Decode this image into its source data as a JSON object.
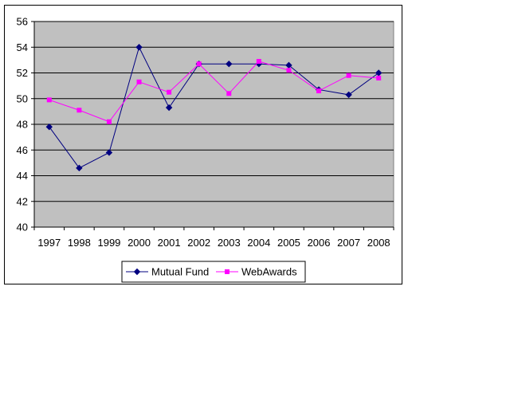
{
  "chart_data": {
    "type": "line",
    "title": "",
    "xlabel": "",
    "ylabel": "",
    "categories": [
      "1997",
      "1998",
      "1999",
      "2000",
      "2001",
      "2002",
      "2003",
      "2004",
      "2005",
      "2006",
      "2007",
      "2008"
    ],
    "ylim": [
      40,
      56
    ],
    "yticks": [
      40,
      42,
      44,
      46,
      48,
      50,
      52,
      54,
      56
    ],
    "grid": true,
    "legend_position": "bottom",
    "plot_background": "#C0C0C0",
    "series": [
      {
        "name": "Mutual Fund",
        "color": "#000080",
        "marker": "diamond",
        "values": [
          47.8,
          44.6,
          45.8,
          54.0,
          49.3,
          52.7,
          52.7,
          52.7,
          52.6,
          50.7,
          50.3,
          52.0
        ]
      },
      {
        "name": "WebAwards",
        "color": "#FF00FF",
        "marker": "square",
        "values": [
          49.9,
          49.1,
          48.2,
          51.3,
          50.5,
          52.7,
          50.4,
          52.9,
          52.2,
          50.6,
          51.8,
          51.6
        ]
      }
    ]
  }
}
